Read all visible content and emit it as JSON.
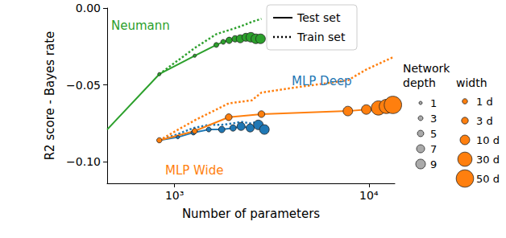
{
  "chart_data": {
    "type": "line",
    "x_label": "Number of parameters",
    "y_label": "R2 score - Bayes rate",
    "log": "x",
    "grid": false,
    "xlim": [
      450,
      13600
    ],
    "xticks": [
      {
        "value": 1000,
        "label": "10³"
      },
      {
        "value": 10000,
        "label": "10⁴"
      }
    ],
    "ylim": [
      -0.114,
      0
    ],
    "yticks": [
      {
        "value": -0.1,
        "label": "−0.10"
      },
      {
        "value": -0.05,
        "label": "−0.05"
      },
      {
        "value": 0,
        "label": "0.00"
      }
    ],
    "legend": "upper center",
    "legend_entries": [
      {
        "label": "Test set",
        "line_style": "solid"
      },
      {
        "label": "Train set",
        "line_style": "dotted"
      }
    ],
    "series": [
      {
        "name": "Neumann",
        "color": "#2ca02c",
        "test": {
          "x": [
            450,
            835,
            1270,
            1640,
            1780,
            1910,
            2050,
            2180,
            2330,
            2470,
            2620,
            2770
          ],
          "values": [
            -0.079,
            -0.043,
            -0.031,
            -0.024,
            -0.022,
            -0.021,
            -0.02,
            -0.02,
            -0.019,
            -0.019,
            -0.02,
            -0.02
          ],
          "depth": [
            null,
            1,
            1,
            3,
            3,
            5,
            5,
            7,
            7,
            9,
            9,
            9
          ]
        },
        "train": {
          "x": [
            835,
            1270,
            1640,
            2180,
            2500,
            2800
          ],
          "values": [
            -0.043,
            -0.026,
            -0.017,
            -0.012,
            -0.009,
            -0.007
          ]
        }
      },
      {
        "name": "MLP Deep",
        "color": "#1f77b4",
        "test": {
          "x": [
            835,
            1040,
            1250,
            1500,
            1750,
            2000,
            2200,
            2450,
            2700,
            2900
          ],
          "values": [
            -0.086,
            -0.084,
            -0.081,
            -0.079,
            -0.079,
            -0.078,
            -0.077,
            -0.078,
            -0.076,
            -0.079
          ],
          "depth": [
            1,
            1,
            3,
            3,
            5,
            5,
            7,
            7,
            9,
            9
          ]
        },
        "train": {
          "x": [
            835,
            1040,
            1250,
            1500,
            1750,
            2000,
            2200,
            2450,
            2700,
            2900
          ],
          "values": [
            -0.086,
            -0.082,
            -0.078,
            -0.076,
            -0.076,
            -0.075,
            -0.074,
            -0.075,
            -0.074,
            -0.076
          ]
        }
      },
      {
        "name": "MLP Wide",
        "color": "#ff7f0e",
        "test": {
          "x": [
            835,
            1270,
            1900,
            2800,
            7800,
            9700,
            11200,
            12300,
            13300
          ],
          "values": [
            -0.086,
            -0.08,
            -0.071,
            -0.069,
            -0.067,
            -0.066,
            -0.065,
            -0.064,
            -0.063
          ],
          "width": [
            1,
            1,
            3,
            3,
            10,
            10,
            30,
            30,
            50
          ]
        },
        "train": {
          "x": [
            835,
            1270,
            1900,
            2500,
            2800,
            4000,
            7800,
            9700,
            13300
          ],
          "values": [
            -0.086,
            -0.073,
            -0.062,
            -0.06,
            -0.055,
            -0.052,
            -0.047,
            -0.04,
            -0.032
          ]
        }
      }
    ],
    "depth_legend": {
      "title": "Network depth",
      "values": [
        1,
        3,
        5,
        7,
        9
      ]
    },
    "width_legend": {
      "title": "width",
      "values": [
        1,
        3,
        10,
        30,
        50
      ],
      "labels": [
        "1 d",
        "3 d",
        "10 d",
        "30 d",
        "50 d"
      ]
    }
  }
}
